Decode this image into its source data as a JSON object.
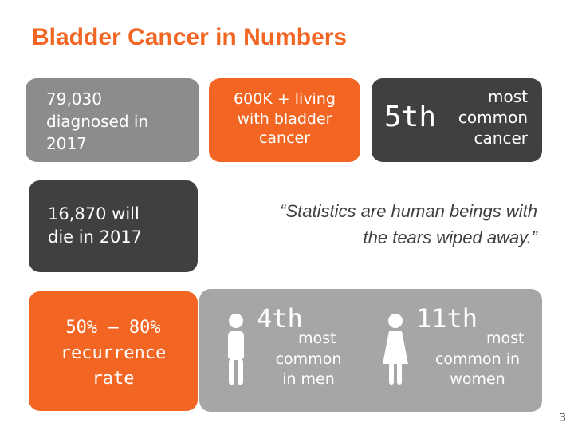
{
  "title": "Bladder Cancer in Numbers",
  "box_diagnosed": "79,030\ndiagnosed in\n2017",
  "box_living": "600K + living\nwith bladder\ncancer",
  "box_rank": {
    "rank": "5th",
    "text": "most\ncommon\ncancer"
  },
  "box_deaths": "16,870 will\ndie in 2017",
  "quote": "“Statistics are human beings with\nthe tears wiped away.”",
  "box_recurrence": "50% – 80%\nrecurrence\nrate",
  "men": {
    "rank": "4th",
    "text_first": "most",
    "text_rest": "common\nin men",
    "icon": "male-person-icon"
  },
  "women": {
    "rank": "11th",
    "text_first": "most",
    "text_rest": "common in\nwomen",
    "icon": "female-person-icon"
  },
  "page_number": "3",
  "colors": {
    "orange": "#f26522",
    "dark": "#404040",
    "gray": "#8c8c8c",
    "light_gray": "#a6a6a6"
  }
}
